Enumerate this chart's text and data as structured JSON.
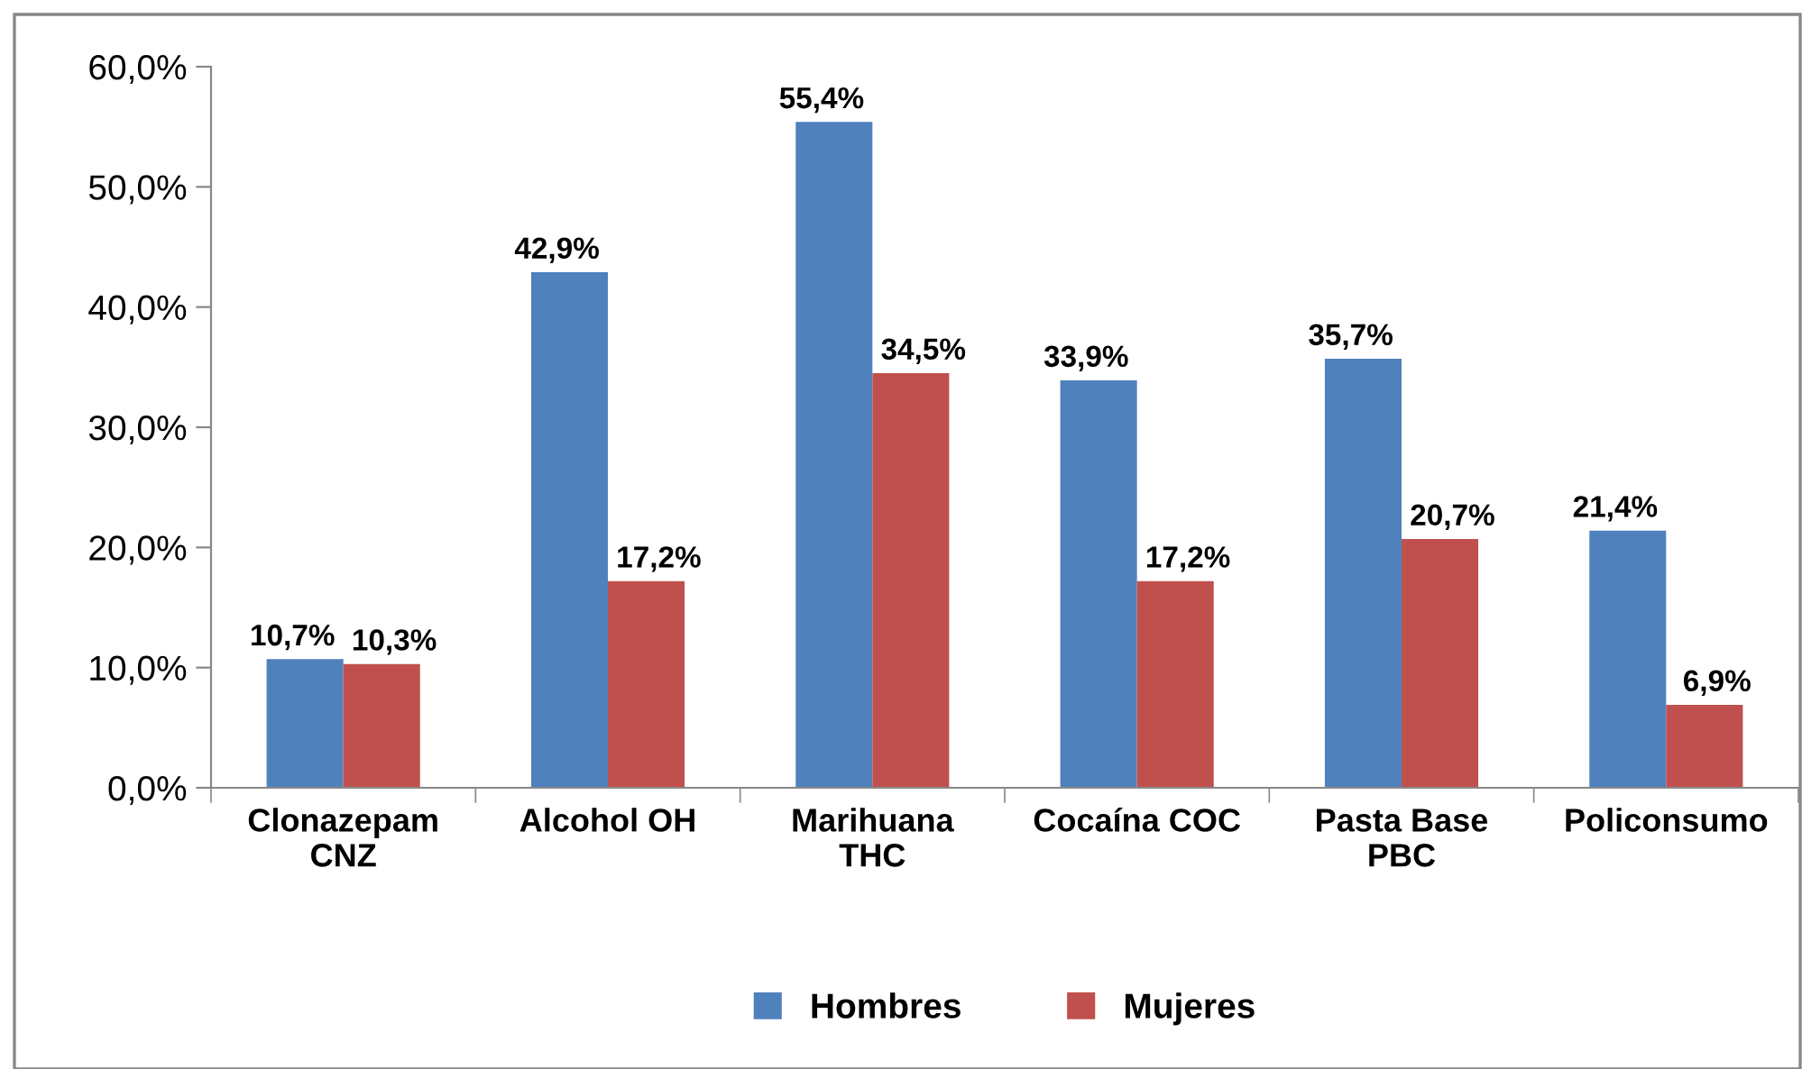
{
  "chart_data": {
    "type": "bar",
    "categories": [
      "Clonazepam\nCNZ",
      "Alcohol OH",
      "Marihuana\nTHC",
      "Cocaína COC",
      "Pasta Base\nPBC",
      "Policonsumo"
    ],
    "series": [
      {
        "name": "Hombres",
        "color": "#4f81bd",
        "values": [
          10.7,
          42.9,
          55.4,
          33.9,
          35.7,
          21.4
        ],
        "value_labels": [
          "10,7%",
          "42,9%",
          "55,4%",
          "33,9%",
          "35,7%",
          "21,4%"
        ]
      },
      {
        "name": "Mujeres",
        "color": "#c0504d",
        "values": [
          10.3,
          17.2,
          34.5,
          17.2,
          20.7,
          6.9
        ],
        "value_labels": [
          "10,3%",
          "17,2%",
          "34,5%",
          "17,2%",
          "20,7%",
          "6,9%"
        ]
      }
    ],
    "ylim": [
      0,
      60
    ],
    "yticks": [
      {
        "value": 0,
        "label": "0,0%"
      },
      {
        "value": 10,
        "label": "10,0%"
      },
      {
        "value": 20,
        "label": "20,0%"
      },
      {
        "value": 30,
        "label": "30,0%"
      },
      {
        "value": 40,
        "label": "40,0%"
      },
      {
        "value": 50,
        "label": "50,0%"
      },
      {
        "value": 60,
        "label": "60,0%"
      }
    ],
    "grid": false,
    "legend": "bottom"
  }
}
